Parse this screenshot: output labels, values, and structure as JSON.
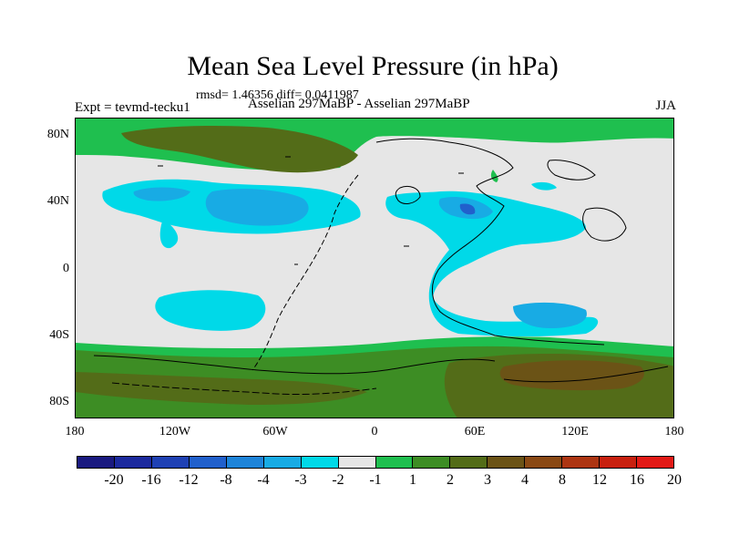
{
  "title": "Mean Sea Level Pressure (in hPa)",
  "stats": "rmsd= 1.46356 diff= 0.0411987",
  "experiment": "Expt = tevmd-tecku1",
  "comparison": "Asselian 297MaBP - Asselian 297MaBP",
  "season": "JJA",
  "map": {
    "y_labels": [
      "80N",
      "40N",
      "0",
      "40S",
      "80S"
    ],
    "x_labels": [
      "180",
      "120W",
      "60W",
      "0",
      "60E",
      "120E",
      "180"
    ]
  },
  "colorbar": {
    "colors": [
      "#1a1a80",
      "#1c2a9e",
      "#1f41b4",
      "#2160cc",
      "#1e84d9",
      "#18abe4",
      "#00d9e8",
      "#e6e6e6",
      "#1fbf4f",
      "#3d8d24",
      "#536c18",
      "#6b5316",
      "#8a4914",
      "#ad3512",
      "#c8200f",
      "#e21a16"
    ],
    "labels": [
      "-20",
      "-16",
      "-12",
      "-8",
      "-4",
      "-3",
      "-2",
      "-1",
      "1",
      "2",
      "3",
      "4",
      "8",
      "12",
      "16",
      "20"
    ]
  },
  "legend_colors": {
    "neutral": "#e6e6e6",
    "light_cyan": "#00d9e8",
    "mid_blue": "#18abe4",
    "green": "#1fbf4f",
    "olive": "#536c18",
    "brown": "#6b5316"
  }
}
